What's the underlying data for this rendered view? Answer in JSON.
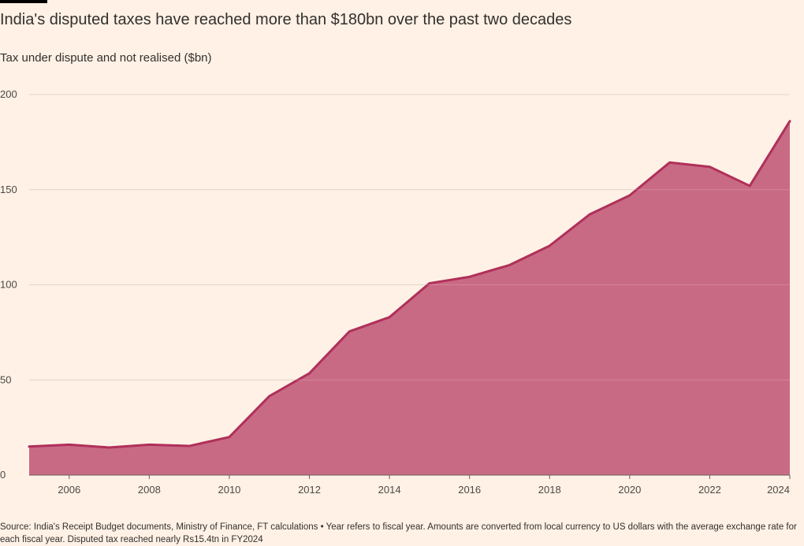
{
  "title": "India's disputed taxes have reached more than $180bn over the past two decades",
  "subtitle": "Tax under dispute and not realised ($bn)",
  "source": "Source: India's Receipt Budget documents, Ministry of Finance, FT calculations • Year refers to fiscal year. Amounts are converted from local currency to US dollars with the average exchange rate for each fiscal year. Disputed tax reached nearly Rs15.4tn in FY2024",
  "colors": {
    "background": "#fff1e5",
    "area_fill": "#c96a85",
    "line": "#b0305a",
    "grid": "#d9cdc3"
  },
  "chart_data": {
    "type": "area",
    "x": [
      2005,
      2006,
      2007,
      2008,
      2009,
      2010,
      2011,
      2012,
      2013,
      2014,
      2015,
      2016,
      2017,
      2018,
      2019,
      2020,
      2021,
      2022,
      2023,
      2024
    ],
    "series": [
      {
        "values": [
          15,
          16,
          14.5,
          16,
          15.3,
          20,
          41.5,
          53.5,
          75.5,
          83,
          100.8,
          104.2,
          110.4,
          120.5,
          137,
          147,
          164.3,
          162,
          152,
          186
        ]
      }
    ],
    "title": "India's disputed taxes have reached more than $180bn over the past two decades",
    "ylabel": "Tax under dispute and not realised ($bn)",
    "xlim": [
      2005,
      2024
    ],
    "ylim": [
      0,
      200
    ],
    "xticks": [
      "2006",
      "2008",
      "2010",
      "2012",
      "2014",
      "2016",
      "2018",
      "2020",
      "2022",
      "2024"
    ],
    "yticks": [
      "0",
      "50",
      "100",
      "150",
      "200"
    ],
    "grid": true
  }
}
